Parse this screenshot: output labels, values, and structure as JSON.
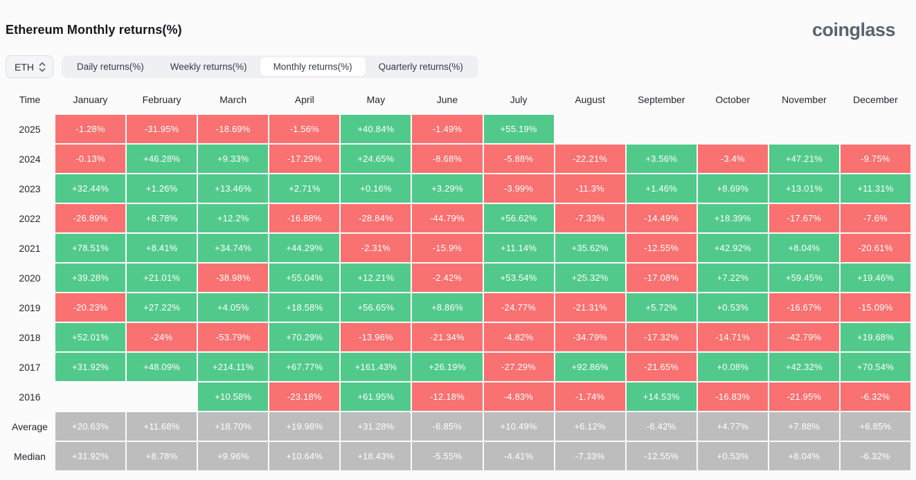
{
  "page": {
    "title": "Ethereum Monthly returns(%)",
    "brand": "coinglass"
  },
  "controls": {
    "symbol_select": {
      "value": "ETH",
      "icon": "updown-chevron-icon"
    },
    "tabs": [
      {
        "label": "Daily returns(%)",
        "active": false
      },
      {
        "label": "Weekly returns(%)",
        "active": false
      },
      {
        "label": "Monthly returns(%)",
        "active": true
      },
      {
        "label": "Quarterly returns(%)",
        "active": false
      }
    ]
  },
  "colors": {
    "positive": "#51c98b",
    "negative": "#f97170",
    "summary": "#bdbdbd"
  },
  "chart_data": {
    "type": "heatmap",
    "title": "Ethereum Monthly returns(%)",
    "row_header": "Time",
    "columns": [
      "January",
      "February",
      "March",
      "April",
      "May",
      "June",
      "July",
      "August",
      "September",
      "October",
      "November",
      "December"
    ],
    "rows": [
      {
        "label": "2025",
        "kind": "year",
        "values": [
          "-1.28%",
          "-31.95%",
          "-18.69%",
          "-1.56%",
          "+40.84%",
          "-1.49%",
          "+55.19%",
          null,
          null,
          null,
          null,
          null
        ]
      },
      {
        "label": "2024",
        "kind": "year",
        "values": [
          "-0.13%",
          "+46.28%",
          "+9.33%",
          "-17.29%",
          "+24.65%",
          "-8.68%",
          "-5.88%",
          "-22.21%",
          "+3.56%",
          "-3.4%",
          "+47.21%",
          "-9.75%"
        ]
      },
      {
        "label": "2023",
        "kind": "year",
        "values": [
          "+32.44%",
          "+1.26%",
          "+13.46%",
          "+2.71%",
          "+0.16%",
          "+3.29%",
          "-3.99%",
          "-11.3%",
          "+1.46%",
          "+8.69%",
          "+13.01%",
          "+11.31%"
        ]
      },
      {
        "label": "2022",
        "kind": "year",
        "values": [
          "-26.89%",
          "+8.78%",
          "+12.2%",
          "-16.88%",
          "-28.84%",
          "-44.79%",
          "+56.62%",
          "-7.33%",
          "-14.49%",
          "+18.39%",
          "-17.67%",
          "-7.6%"
        ]
      },
      {
        "label": "2021",
        "kind": "year",
        "values": [
          "+78.51%",
          "+8.41%",
          "+34.74%",
          "+44.29%",
          "-2.31%",
          "-15.9%",
          "+11.14%",
          "+35.62%",
          "-12.55%",
          "+42.92%",
          "+8.04%",
          "-20.61%"
        ]
      },
      {
        "label": "2020",
        "kind": "year",
        "values": [
          "+39.28%",
          "+21.01%",
          "-38.98%",
          "+55.04%",
          "+12.21%",
          "-2.42%",
          "+53.54%",
          "+25.32%",
          "-17.08%",
          "+7.22%",
          "+59.45%",
          "+19.46%"
        ]
      },
      {
        "label": "2019",
        "kind": "year",
        "values": [
          "-20.23%",
          "+27.22%",
          "+4.05%",
          "+18.58%",
          "+56.65%",
          "+8.86%",
          "-24.77%",
          "-21.31%",
          "+5.72%",
          "+0.53%",
          "-16.67%",
          "-15.09%"
        ]
      },
      {
        "label": "2018",
        "kind": "year",
        "values": [
          "+52.01%",
          "-24%",
          "-53.79%",
          "+70.29%",
          "-13.96%",
          "-21.34%",
          "-4.82%",
          "-34.79%",
          "-17.32%",
          "-14.71%",
          "-42.79%",
          "+19.68%"
        ]
      },
      {
        "label": "2017",
        "kind": "year",
        "values": [
          "+31.92%",
          "+48.09%",
          "+214.11%",
          "+67.77%",
          "+161.43%",
          "+26.19%",
          "-27.29%",
          "+92.86%",
          "-21.65%",
          "+0.08%",
          "+42.32%",
          "+70.54%"
        ]
      },
      {
        "label": "2016",
        "kind": "year",
        "values": [
          null,
          null,
          "+10.58%",
          "-23.18%",
          "+61.95%",
          "-12.18%",
          "-4.83%",
          "-1.74%",
          "+14.53%",
          "-16.83%",
          "-21.95%",
          "-6.32%"
        ]
      },
      {
        "label": "Average",
        "kind": "summary",
        "values": [
          "+20.63%",
          "+11.68%",
          "+18.70%",
          "+19.98%",
          "+31.28%",
          "-6.85%",
          "+10.49%",
          "+6.12%",
          "-6.42%",
          "+4.77%",
          "+7.88%",
          "+6.85%"
        ]
      },
      {
        "label": "Median",
        "kind": "summary",
        "values": [
          "+31.92%",
          "+8.78%",
          "+9.96%",
          "+10.64%",
          "+18.43%",
          "-5.55%",
          "-4.41%",
          "-7.33%",
          "-12.55%",
          "+0.53%",
          "+8.04%",
          "-6.32%"
        ]
      }
    ]
  }
}
